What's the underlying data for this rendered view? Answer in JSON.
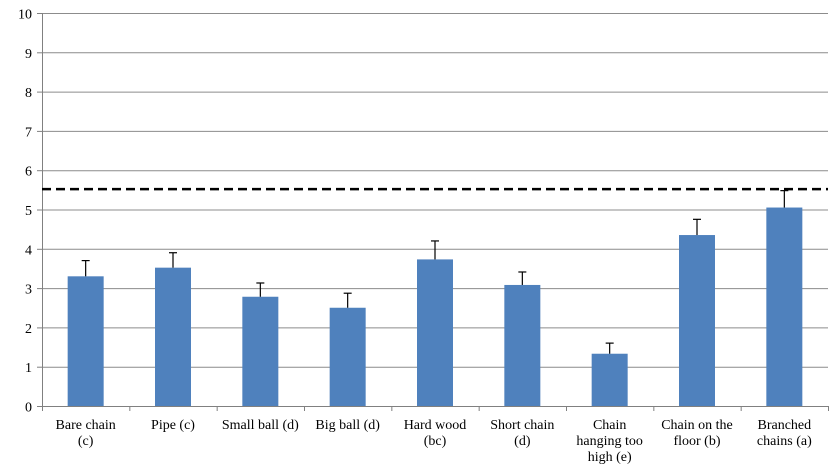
{
  "chart_data": {
    "type": "bar",
    "title": "",
    "xlabel": "",
    "ylabel": "",
    "ylim": [
      0,
      10
    ],
    "yticks": [
      0,
      1,
      2,
      3,
      4,
      5,
      6,
      7,
      8,
      9,
      10
    ],
    "grid": true,
    "legend": "none",
    "categories": [
      [
        "Bare chain",
        "(c)"
      ],
      [
        "Pipe (c)"
      ],
      [
        "Small ball (d)"
      ],
      [
        "Big ball (d)"
      ],
      [
        "Hard wood",
        "(bc)"
      ],
      [
        "Short chain",
        "(d)"
      ],
      [
        "Chain",
        "hanging too",
        "high (e)"
      ],
      [
        "Chain on the",
        "floor (b)"
      ],
      [
        "Branched",
        "chains (a)"
      ]
    ],
    "values": [
      3.3,
      3.52,
      2.78,
      2.5,
      3.73,
      3.08,
      1.33,
      4.35,
      5.05
    ],
    "error": [
      0.4,
      0.38,
      0.35,
      0.37,
      0.47,
      0.33,
      0.27,
      0.4,
      0.43
    ],
    "reference_line": {
      "value": 5.52,
      "style": "dashed"
    },
    "colors": {
      "bar": "#4f81bd",
      "grid": "#8c8c8c",
      "axis": "#808080",
      "reference": "#000000",
      "error": "#000000"
    }
  }
}
